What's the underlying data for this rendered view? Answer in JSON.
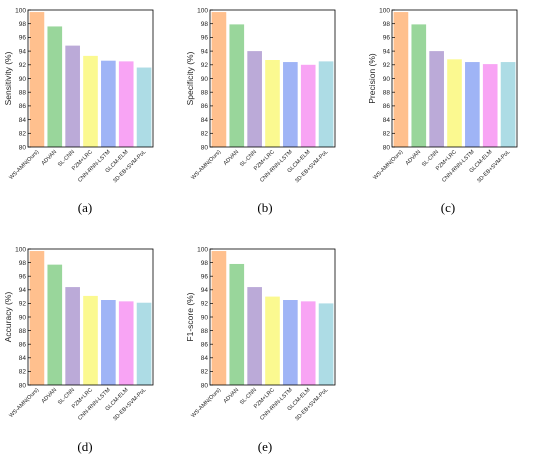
{
  "colors": [
    "#FFC08E",
    "#99D69B",
    "#BBAAD8",
    "#FBF990",
    "#9FB4F6",
    "#F8A4F4",
    "#ADDCE5"
  ],
  "chart_data": [
    {
      "panel_label": "(a)",
      "type": "bar",
      "ylabel": "Sensitivity (%)",
      "ylim": [
        80,
        100
      ],
      "yticks": [
        80,
        82,
        84,
        86,
        88,
        90,
        92,
        94,
        96,
        98,
        100
      ],
      "categories": [
        "WS-AMN(Ours)",
        "ADVAN",
        "SL-CNN",
        "PZM+LRC",
        "CNN-RNN-LSTM",
        "GLCM-ELM",
        "3D-EB+SVM-PoL"
      ],
      "values": [
        99.7,
        97.6,
        94.8,
        93.3,
        92.6,
        92.5,
        91.6
      ]
    },
    {
      "panel_label": "(b)",
      "type": "bar",
      "ylabel": "Specificity (%)",
      "ylim": [
        80,
        100
      ],
      "yticks": [
        80,
        82,
        84,
        86,
        88,
        90,
        92,
        94,
        96,
        98,
        100
      ],
      "categories": [
        "WS-AMN(Ours)",
        "ADVAN",
        "SL-CNN",
        "PZM+LRC",
        "CNN-RNN-LSTM",
        "GLCM-ELM",
        "3D-EB+SVM-PoL"
      ],
      "values": [
        99.7,
        97.9,
        94.0,
        92.7,
        92.4,
        92.0,
        92.5
      ]
    },
    {
      "panel_label": "(c)",
      "type": "bar",
      "ylabel": "Precision (%)",
      "ylim": [
        80,
        100
      ],
      "yticks": [
        80,
        82,
        84,
        86,
        88,
        90,
        92,
        94,
        96,
        98,
        100
      ],
      "categories": [
        "WS-AMN(Ours)",
        "ADVAN",
        "SL-CNN",
        "PZM+LRC",
        "CNN-RNN-LSTM",
        "GLCM-ELM",
        "3D-EB+SVM-PoL"
      ],
      "values": [
        99.7,
        97.9,
        94.0,
        92.8,
        92.4,
        92.1,
        92.4
      ]
    },
    {
      "panel_label": "(d)",
      "type": "bar",
      "ylabel": "Accuracy (%)",
      "ylim": [
        80,
        100
      ],
      "yticks": [
        80,
        82,
        84,
        86,
        88,
        90,
        92,
        94,
        96,
        98,
        100
      ],
      "categories": [
        "WS-AMN(Ours)",
        "ADVAN",
        "SL-CNN",
        "PZM+LRC",
        "CNN-RNN-LSTM",
        "GLCM-ELM",
        "3D-EB+SVM-PoL"
      ],
      "values": [
        99.7,
        97.7,
        94.4,
        93.1,
        92.5,
        92.3,
        92.1
      ]
    },
    {
      "panel_label": "(e)",
      "type": "bar",
      "ylabel": "F1-score (%)",
      "ylim": [
        80,
        100
      ],
      "yticks": [
        80,
        82,
        84,
        86,
        88,
        90,
        92,
        94,
        96,
        98,
        100
      ],
      "categories": [
        "WS-AMN(Ours)",
        "ADVAN",
        "SL-CNN",
        "PZM+LRC",
        "CNN-RNN-LSTM",
        "GLCM-ELM",
        "3D-EB+SVM-PoL"
      ],
      "values": [
        99.7,
        97.8,
        94.4,
        93.0,
        92.5,
        92.3,
        92.0
      ]
    }
  ]
}
